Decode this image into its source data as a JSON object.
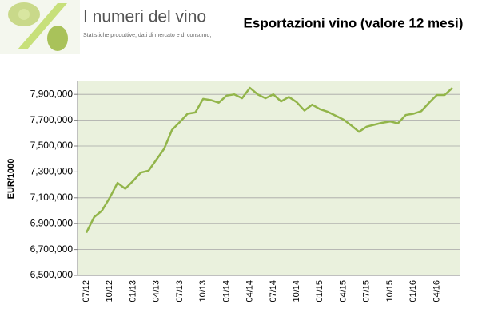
{
  "header": {
    "title": "I numeri del vino",
    "tagline": "Statistiche produttive, dati di mercato e di consumo,"
  },
  "chart_data": {
    "type": "line",
    "title": "Esportazioni vino (valore 12 mesi)",
    "y_label": "EUR/1000",
    "categories": [
      "07/12",
      null,
      null,
      "10/12",
      null,
      null,
      "01/13",
      null,
      null,
      "04/13",
      null,
      null,
      "07/13",
      null,
      null,
      "10/13",
      null,
      null,
      "01/14",
      null,
      null,
      "04/14",
      null,
      null,
      "07/14",
      null,
      null,
      "10/14",
      null,
      null,
      "01/15",
      null,
      null,
      "04/15",
      null,
      null,
      "07/15",
      null,
      null,
      "10/15",
      null,
      null,
      "01/16",
      null,
      null,
      "04/16",
      null,
      null
    ],
    "series": [
      {
        "name": "Esportazioni",
        "color": "#92b54a",
        "values": [
          6830000,
          6950000,
          7000000,
          7100000,
          7215000,
          7170000,
          7230000,
          7295000,
          7310000,
          7395000,
          7480000,
          7625000,
          7685000,
          7750000,
          7760000,
          7865000,
          7855000,
          7835000,
          7890000,
          7900000,
          7870000,
          7950000,
          7900000,
          7870000,
          7900000,
          7845000,
          7880000,
          7840000,
          7775000,
          7820000,
          7785000,
          7765000,
          7735000,
          7705000,
          7660000,
          7610000,
          7650000,
          7665000,
          7680000,
          7690000,
          7675000,
          7740000,
          7750000,
          7770000,
          7835000,
          7895000,
          7895000,
          7950000
        ]
      }
    ],
    "ylim": [
      6500000,
      8000000
    ],
    "yticks": [
      {
        "value": 6500000,
        "label": "6,500,000"
      },
      {
        "value": 6700000,
        "label": "6,700,000"
      },
      {
        "value": 6900000,
        "label": "6,900,000"
      },
      {
        "value": 7100000,
        "label": "7,100,000"
      },
      {
        "value": 7300000,
        "label": "7,300,000"
      },
      {
        "value": 7500000,
        "label": "7,500,000"
      },
      {
        "value": 7700000,
        "label": "7,700,000"
      },
      {
        "value": 7900000,
        "label": "7,900,000"
      }
    ],
    "grid": true,
    "background": "#eaf1dd"
  }
}
